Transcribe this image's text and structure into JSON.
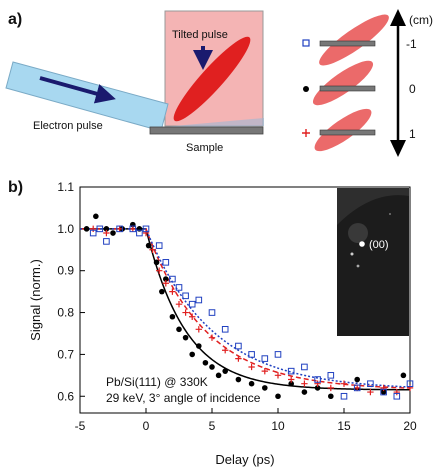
{
  "panel_a": {
    "label": "a)",
    "tilted_pulse": "Tilted pulse",
    "electron_pulse": "Electron pulse",
    "sample": "Sample",
    "axis_unit": "(cm)",
    "positions": [
      {
        "marker": "square",
        "value": "-1"
      },
      {
        "marker": "dot",
        "value": "0"
      },
      {
        "marker": "plus",
        "value": "1"
      }
    ]
  },
  "panel_b": {
    "label": "b)",
    "annotation_line1": "Pb/Si(111) @ 330K",
    "annotation_line2": "29 keV, 3° angle of incidence",
    "inset_label": "(00)"
  },
  "colors": {
    "laser_fill": "#f4b4b4",
    "pulse_red": "#e02020",
    "beam_blue": "#a8d8f0",
    "arrow_navy": "#1a1a6e",
    "sample_gray": "#777777",
    "series_black": "#000000",
    "series_red": "#e02020",
    "series_blue": "#2040c0"
  },
  "chart_data": {
    "type": "scatter",
    "xlabel": "Delay (ps)",
    "ylabel": "Signal (norm.)",
    "xlim": [
      -5,
      20
    ],
    "ylim": [
      0.56,
      1.1
    ],
    "x_ticks": [
      -5,
      0,
      5,
      10,
      15,
      20
    ],
    "y_ticks": [
      0.6,
      0.7,
      0.8,
      0.9,
      1.0,
      1.1
    ],
    "x_tick_labels": [
      "-5",
      "0",
      "5",
      "10",
      "15",
      "20"
    ],
    "y_tick_labels": [
      "0.6",
      "0.7",
      "0.8",
      "0.9",
      "1.0",
      "1.1"
    ],
    "grid": false,
    "series": [
      {
        "marker": "dot",
        "color": "#000000",
        "fit_style": "solid",
        "fit": {
          "t0": 0,
          "y0": 1.0,
          "yinf": 0.615,
          "tau": 3.0
        },
        "points": [
          [
            -4.5,
            1.0
          ],
          [
            -3.8,
            1.03
          ],
          [
            -3.0,
            1.0
          ],
          [
            -2.5,
            0.99
          ],
          [
            -1.8,
            1.0
          ],
          [
            -1.0,
            1.01
          ],
          [
            -0.5,
            1.0
          ],
          [
            0.2,
            0.96
          ],
          [
            0.8,
            0.92
          ],
          [
            1.2,
            0.85
          ],
          [
            1.5,
            0.88
          ],
          [
            2.0,
            0.79
          ],
          [
            2.5,
            0.76
          ],
          [
            3.0,
            0.74
          ],
          [
            3.5,
            0.7
          ],
          [
            4.0,
            0.72
          ],
          [
            4.5,
            0.68
          ],
          [
            5.0,
            0.67
          ],
          [
            5.5,
            0.65
          ],
          [
            6.0,
            0.66
          ],
          [
            7.0,
            0.64
          ],
          [
            8.0,
            0.63
          ],
          [
            9.0,
            0.62
          ],
          [
            10.0,
            0.6
          ],
          [
            11.0,
            0.63
          ],
          [
            12.0,
            0.61
          ],
          [
            13.0,
            0.62
          ],
          [
            14.0,
            0.6
          ],
          [
            16.0,
            0.64
          ],
          [
            18.0,
            0.61
          ],
          [
            19.5,
            0.65
          ]
        ]
      },
      {
        "marker": "plus",
        "color": "#e02020",
        "fit_style": "dashed",
        "fit": {
          "t0": 0,
          "y0": 1.0,
          "yinf": 0.615,
          "tau": 4.5
        },
        "points": [
          [
            -4.0,
            1.0
          ],
          [
            -3.0,
            0.99
          ],
          [
            -2.0,
            1.0
          ],
          [
            -1.0,
            1.0
          ],
          [
            0.0,
            0.99
          ],
          [
            0.5,
            0.95
          ],
          [
            1.0,
            0.9
          ],
          [
            1.5,
            0.87
          ],
          [
            2.0,
            0.85
          ],
          [
            2.5,
            0.82
          ],
          [
            3.0,
            0.8
          ],
          [
            3.5,
            0.79
          ],
          [
            4.0,
            0.76
          ],
          [
            5.0,
            0.74
          ],
          [
            6.0,
            0.71
          ],
          [
            7.0,
            0.69
          ],
          [
            8.0,
            0.67
          ],
          [
            9.0,
            0.66
          ],
          [
            10.0,
            0.65
          ],
          [
            11.0,
            0.64
          ],
          [
            12.0,
            0.63
          ],
          [
            13.0,
            0.63
          ],
          [
            14.0,
            0.62
          ],
          [
            15.0,
            0.63
          ],
          [
            16.0,
            0.62
          ],
          [
            17.0,
            0.61
          ],
          [
            18.0,
            0.62
          ],
          [
            19.0,
            0.61
          ],
          [
            20.0,
            0.62
          ]
        ]
      },
      {
        "marker": "square",
        "color": "#2040c0",
        "fit_style": "dotted",
        "fit": {
          "t0": 0,
          "y0": 1.0,
          "yinf": 0.615,
          "tau": 5.0
        },
        "points": [
          [
            -4.0,
            0.99
          ],
          [
            -3.5,
            1.0
          ],
          [
            -3.0,
            0.97
          ],
          [
            -2.0,
            1.0
          ],
          [
            -1.0,
            1.0
          ],
          [
            -0.5,
            0.99
          ],
          [
            0.0,
            1.0
          ],
          [
            1.0,
            0.96
          ],
          [
            1.5,
            0.92
          ],
          [
            2.0,
            0.88
          ],
          [
            2.5,
            0.86
          ],
          [
            3.0,
            0.84
          ],
          [
            3.5,
            0.82
          ],
          [
            4.0,
            0.83
          ],
          [
            5.0,
            0.8
          ],
          [
            6.0,
            0.76
          ],
          [
            7.0,
            0.72
          ],
          [
            8.0,
            0.7
          ],
          [
            9.0,
            0.69
          ],
          [
            10.0,
            0.7
          ],
          [
            11.0,
            0.66
          ],
          [
            12.0,
            0.67
          ],
          [
            13.0,
            0.64
          ],
          [
            14.0,
            0.65
          ],
          [
            15.0,
            0.6
          ],
          [
            16.0,
            0.62
          ],
          [
            17.0,
            0.63
          ],
          [
            18.0,
            0.61
          ],
          [
            19.0,
            0.6
          ],
          [
            20.0,
            0.63
          ]
        ]
      }
    ]
  }
}
